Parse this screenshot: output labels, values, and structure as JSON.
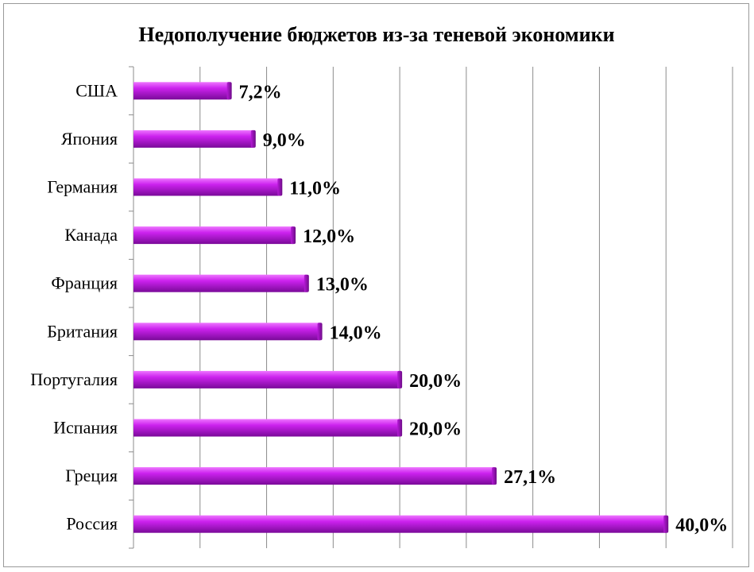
{
  "chart_data": {
    "type": "bar",
    "orientation": "horizontal",
    "title": "Недополучение бюджетов из-за теневой экономики",
    "xlabel": "",
    "ylabel": "",
    "categories": [
      "США",
      "Япония",
      "Германия",
      "Канада",
      "Франция",
      "Британия",
      "Португалия",
      "Испания",
      "Греция",
      "Россия"
    ],
    "values": [
      7.2,
      9.0,
      11.0,
      12.0,
      13.0,
      14.0,
      20.0,
      20.0,
      27.1,
      40.0
    ],
    "value_labels": [
      "7,2%",
      "9,0%",
      "11,0%",
      "12,0%",
      "13,0%",
      "14,0%",
      "20,0%",
      "20,0%",
      "27,1%",
      "40,0%"
    ],
    "xlim": [
      0,
      45
    ],
    "x_gridline_step": 5,
    "grid": "vertical",
    "legend": "none",
    "bar_color": "#cc22ee",
    "bar_highlight_color": "#ee77ff",
    "bar_shadow_color": "#7a0a99"
  }
}
